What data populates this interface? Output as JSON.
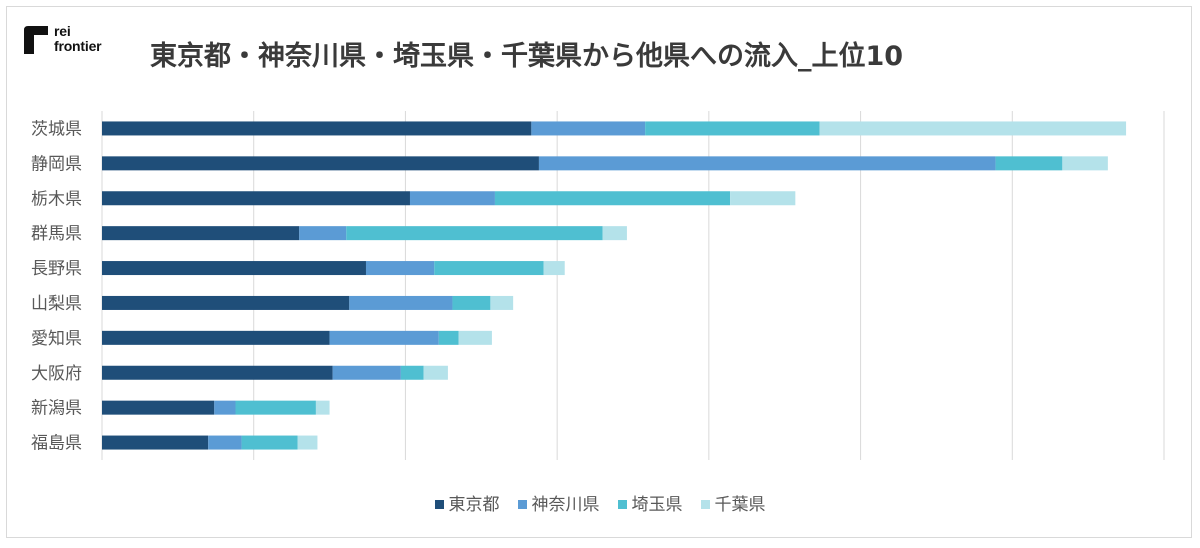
{
  "logo": {
    "line1": "rei",
    "line2": "frontier"
  },
  "chart_data": {
    "type": "bar",
    "orientation": "horizontal",
    "stacked": true,
    "title": "東京都・神奈川県・埼玉県・千葉県から他県への流入_上位10",
    "xlabel": "",
    "ylabel": "",
    "grid": true,
    "legend_position": "bottom",
    "categories": [
      "茨城県",
      "静岡県",
      "栃木県",
      "群馬県",
      "長野県",
      "山梨県",
      "愛知県",
      "大阪府",
      "新潟県",
      "福島県"
    ],
    "xlim": [
      0,
      7
    ],
    "series": [
      {
        "name": "東京都",
        "color": "#1f4e79",
        "values": [
          2.83,
          2.88,
          2.03,
          1.3,
          1.74,
          1.63,
          1.5,
          1.52,
          0.74,
          0.7
        ]
      },
      {
        "name": "神奈川県",
        "color": "#5b9bd5",
        "values": [
          0.75,
          3.01,
          0.56,
          0.31,
          0.45,
          0.68,
          0.72,
          0.45,
          0.14,
          0.22
        ]
      },
      {
        "name": "埼玉県",
        "color": "#4fbfd1",
        "values": [
          1.15,
          0.44,
          1.55,
          1.69,
          0.72,
          0.25,
          0.13,
          0.15,
          0.53,
          0.37
        ]
      },
      {
        "name": "千葉県",
        "color": "#b4e2ea",
        "values": [
          2.02,
          0.3,
          0.43,
          0.16,
          0.14,
          0.15,
          0.22,
          0.16,
          0.09,
          0.13
        ]
      }
    ]
  }
}
